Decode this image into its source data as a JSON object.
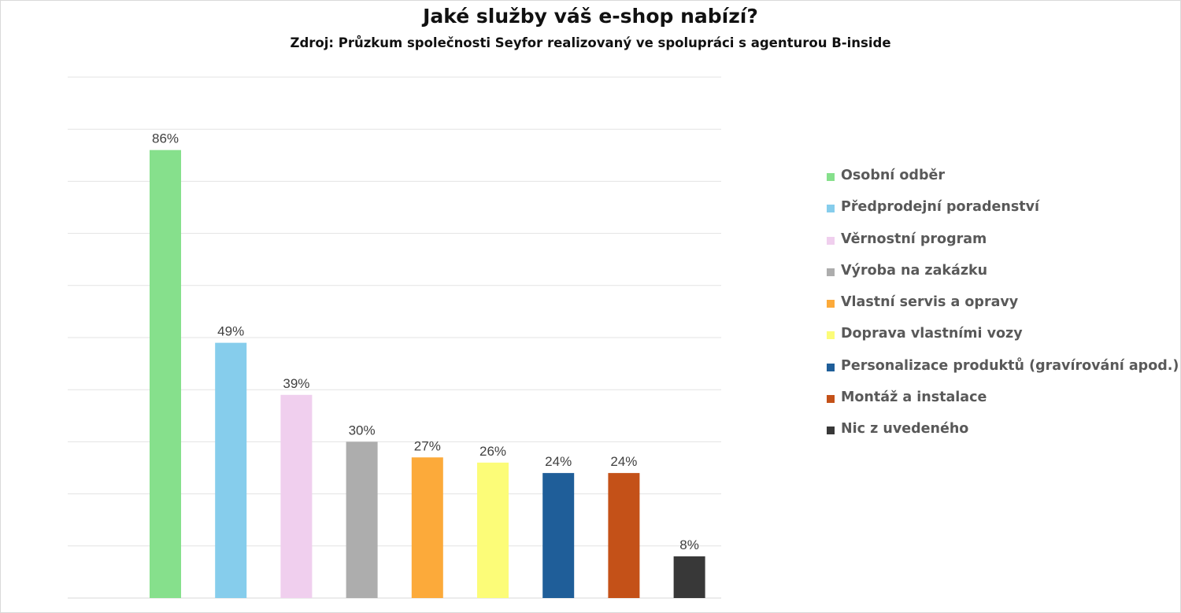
{
  "chart_data": {
    "type": "bar",
    "title": "Jaké služby váš e-shop nabízí?",
    "subtitle": "Zdroj: Průzkum společnosti Seyfor realizovaný ve spolupráci s agenturou B-inside",
    "categories": [
      "Osobní odběr",
      "Předprodejní poradenství",
      "Věrnostní program",
      "Výroba na zakázku",
      "Vlastní servis a opravy",
      "Doprava vlastními vozy",
      "Personalizace produktů (gravírování apod.)",
      "Montáž a instalace",
      "Nic z uvedeného"
    ],
    "values": [
      86,
      49,
      39,
      30,
      27,
      26,
      24,
      24,
      8
    ],
    "value_labels": [
      "86%",
      "49%",
      "39%",
      "30%",
      "27%",
      "26%",
      "24%",
      "24%",
      "8%"
    ],
    "colors": [
      "#86e08c",
      "#86cdec",
      "#f0cfee",
      "#adadad",
      "#fcaa3a",
      "#fcfc78",
      "#1f5e99",
      "#c45118",
      "#383838"
    ],
    "ylim": [
      0,
      100
    ],
    "grid": true,
    "legend_position": "right"
  }
}
